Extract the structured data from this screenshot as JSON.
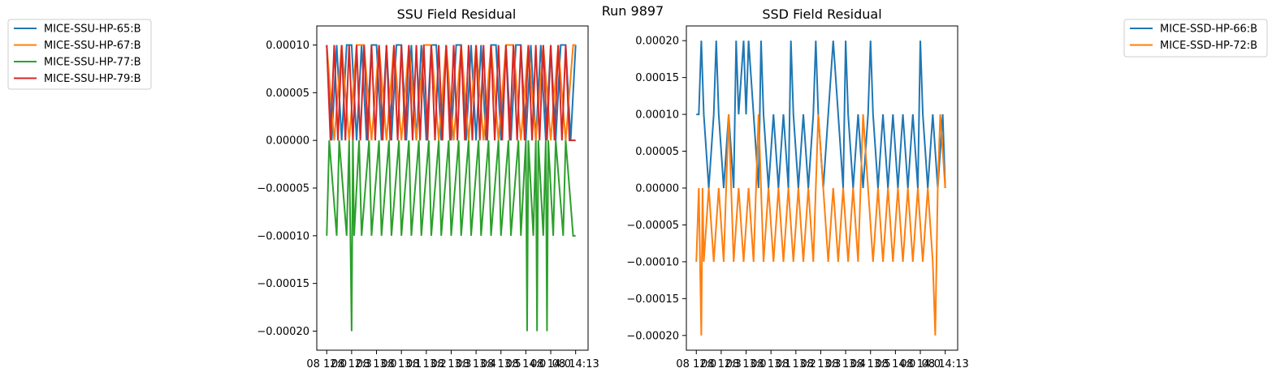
{
  "figure": {
    "suptitle": "Run 9897"
  },
  "chart_data": [
    {
      "type": "line",
      "title": "SSU Field Residual",
      "xlabel": "",
      "ylabel": "",
      "ylim": [
        -0.00022,
        0.00012
      ],
      "yticks": [
        {
          "value": 0.0001,
          "label": "0.00010"
        },
        {
          "value": 5e-05,
          "label": "0.00005"
        },
        {
          "value": 0.0,
          "label": "0.00000"
        },
        {
          "value": -5e-05,
          "label": "−0.00005"
        },
        {
          "value": -0.0001,
          "label": "−0.00010"
        },
        {
          "value": -0.00015,
          "label": "−0.00015"
        },
        {
          "value": -0.0002,
          "label": "−0.00020"
        }
      ],
      "xticks": [
        {
          "value": 0.0,
          "label": "08 12:0"
        },
        {
          "value": 0.1,
          "label": "08 12:3"
        },
        {
          "value": 0.2,
          "label": "08 13:0"
        },
        {
          "value": 0.3,
          "label": "08 13:1"
        },
        {
          "value": 0.4,
          "label": "08 13:2"
        },
        {
          "value": 0.5,
          "label": "08 13:3"
        },
        {
          "value": 0.6,
          "label": "08 13:4"
        },
        {
          "value": 0.7,
          "label": "08 13:5"
        },
        {
          "value": 0.8,
          "label": "08 14:0"
        },
        {
          "value": 0.9,
          "label": "08 14:0"
        },
        {
          "value": 1.0,
          "label": "08 14:13"
        }
      ],
      "xlim": [
        -0.04,
        1.05
      ],
      "grid": false,
      "legend_position": "outside-left",
      "series": [
        {
          "name": "MICE-SSU-HP-65:B",
          "color": "#1f77b4",
          "x": [
            0.0,
            0.02,
            0.04,
            0.06,
            0.08,
            0.1,
            0.12,
            0.14,
            0.16,
            0.18,
            0.2,
            0.22,
            0.24,
            0.26,
            0.28,
            0.3,
            0.32,
            0.34,
            0.36,
            0.38,
            0.4,
            0.42,
            0.44,
            0.46,
            0.48,
            0.5,
            0.52,
            0.54,
            0.56,
            0.58,
            0.6,
            0.62,
            0.64,
            0.66,
            0.68,
            0.7,
            0.72,
            0.74,
            0.76,
            0.78,
            0.8,
            0.82,
            0.84,
            0.86,
            0.88,
            0.9,
            0.92,
            0.94,
            0.96,
            0.98,
            1.0
          ],
          "y": [
            0.0001,
            0.0,
            0.0001,
            0.0,
            0.0001,
            0.0001,
            0.0,
            0.0001,
            0.0,
            0.0001,
            0.0001,
            0.0,
            0.0001,
            0.0,
            0.0001,
            0.0001,
            0.0,
            0.0001,
            0.0,
            0.0001,
            0.0,
            0.0001,
            0.0001,
            0.0,
            0.0001,
            0.0,
            0.0001,
            0.0001,
            0.0,
            0.0001,
            0.0,
            0.0001,
            0.0,
            0.0001,
            0.0001,
            0.0,
            0.0001,
            0.0,
            0.0001,
            0.0001,
            0.0,
            0.0001,
            0.0,
            0.0001,
            0.0,
            0.0001,
            0.0,
            0.0001,
            0.0001,
            0.0,
            0.0001
          ]
        },
        {
          "name": "MICE-SSU-HP-67:B",
          "color": "#ff7f0e",
          "x": [
            0.0,
            0.03,
            0.06,
            0.09,
            0.12,
            0.15,
            0.18,
            0.21,
            0.24,
            0.27,
            0.3,
            0.33,
            0.36,
            0.39,
            0.42,
            0.45,
            0.48,
            0.51,
            0.54,
            0.57,
            0.6,
            0.63,
            0.66,
            0.69,
            0.72,
            0.75,
            0.78,
            0.81,
            0.84,
            0.87,
            0.9,
            0.93,
            0.96,
            0.99,
            1.0
          ],
          "y": [
            0.0001,
            0.0,
            0.0001,
            0.0,
            0.0001,
            0.0001,
            0.0,
            0.0001,
            0.0,
            0.0001,
            0.0,
            0.0001,
            0.0,
            0.0001,
            0.0001,
            0.0,
            0.0001,
            0.0,
            0.0001,
            0.0,
            0.0001,
            0.0,
            0.0001,
            0.0,
            0.0001,
            0.0001,
            0.0,
            0.0001,
            0.0,
            0.0001,
            0.0,
            0.0001,
            0.0,
            0.0001,
            0.0001
          ]
        },
        {
          "name": "MICE-SSU-HP-77:B",
          "color": "#2ca02c",
          "x": [
            0.0,
            0.01,
            0.04,
            0.05,
            0.08,
            0.09,
            0.1,
            0.105,
            0.11,
            0.13,
            0.14,
            0.17,
            0.18,
            0.21,
            0.22,
            0.25,
            0.26,
            0.29,
            0.3,
            0.33,
            0.34,
            0.37,
            0.38,
            0.41,
            0.42,
            0.45,
            0.46,
            0.49,
            0.5,
            0.53,
            0.54,
            0.57,
            0.58,
            0.61,
            0.62,
            0.65,
            0.66,
            0.69,
            0.7,
            0.73,
            0.74,
            0.77,
            0.78,
            0.8,
            0.805,
            0.81,
            0.83,
            0.84,
            0.845,
            0.85,
            0.87,
            0.88,
            0.885,
            0.89,
            0.91,
            0.92,
            0.95,
            0.96,
            0.99,
            1.0
          ],
          "y": [
            -0.0001,
            0.0,
            -0.0001,
            0.0,
            -0.0001,
            0.0,
            -0.0002,
            0.0,
            -0.0001,
            0.0,
            -0.0001,
            0.0,
            -0.0001,
            0.0,
            -0.0001,
            0.0,
            -0.0001,
            0.0,
            -0.0001,
            0.0,
            -0.0001,
            0.0,
            -0.0001,
            0.0,
            -0.0001,
            0.0,
            -0.0001,
            0.0,
            -0.0001,
            0.0,
            -0.0001,
            0.0,
            -0.0001,
            0.0,
            -0.0001,
            0.0,
            -0.0001,
            0.0,
            -0.0001,
            0.0,
            -0.0001,
            0.0,
            -0.0001,
            0.0,
            -0.0002,
            0.0,
            -0.0001,
            0.0,
            -0.0002,
            0.0,
            -0.0001,
            0.0,
            -0.0002,
            0.0,
            -0.0001,
            0.0,
            -0.0001,
            0.0,
            -0.0001,
            -0.0001
          ]
        },
        {
          "name": "MICE-SSU-HP-79:B",
          "color": "#d62728",
          "x": [
            0.0,
            0.015,
            0.03,
            0.045,
            0.06,
            0.075,
            0.09,
            0.105,
            0.12,
            0.135,
            0.15,
            0.165,
            0.18,
            0.195,
            0.21,
            0.225,
            0.24,
            0.255,
            0.27,
            0.285,
            0.3,
            0.315,
            0.33,
            0.345,
            0.36,
            0.375,
            0.39,
            0.405,
            0.42,
            0.435,
            0.45,
            0.465,
            0.48,
            0.495,
            0.51,
            0.525,
            0.54,
            0.555,
            0.57,
            0.585,
            0.6,
            0.615,
            0.63,
            0.645,
            0.66,
            0.675,
            0.69,
            0.705,
            0.72,
            0.735,
            0.75,
            0.765,
            0.78,
            0.795,
            0.81,
            0.825,
            0.84,
            0.855,
            0.87,
            0.885,
            0.9,
            0.915,
            0.93,
            0.945,
            0.96,
            0.975,
            0.99,
            1.0
          ],
          "y": [
            0.0001,
            0.0,
            0.0001,
            0.0,
            0.0001,
            0.0,
            0.0001,
            0.0,
            0.0001,
            0.0,
            0.0001,
            0.0,
            0.0001,
            0.0,
            0.0001,
            0.0,
            0.0001,
            0.0,
            0.0001,
            0.0,
            0.0001,
            0.0,
            0.0001,
            0.0,
            0.0001,
            0.0,
            0.0001,
            0.0,
            0.0001,
            0.0,
            0.0001,
            0.0,
            0.0001,
            0.0,
            0.0001,
            0.0,
            0.0001,
            0.0,
            0.0001,
            0.0,
            0.0001,
            0.0,
            0.0001,
            0.0,
            0.0001,
            0.0,
            0.0001,
            0.0,
            0.0001,
            0.0,
            0.0001,
            0.0,
            0.0001,
            0.0,
            0.0001,
            0.0,
            0.0001,
            0.0,
            0.0001,
            0.0,
            0.0001,
            0.0,
            0.0001,
            0.0,
            0.0001,
            0.0,
            0.0,
            0.0
          ]
        }
      ]
    },
    {
      "type": "line",
      "title": "SSD Field Residual",
      "xlabel": "",
      "ylabel": "",
      "ylim": [
        -0.00022,
        0.00022
      ],
      "yticks": [
        {
          "value": 0.0002,
          "label": "0.00020"
        },
        {
          "value": 0.00015,
          "label": "0.00015"
        },
        {
          "value": 0.0001,
          "label": "0.00010"
        },
        {
          "value": 5e-05,
          "label": "0.00005"
        },
        {
          "value": 0.0,
          "label": "0.00000"
        },
        {
          "value": -5e-05,
          "label": "−0.00005"
        },
        {
          "value": -0.0001,
          "label": "−0.00010"
        },
        {
          "value": -0.00015,
          "label": "−0.00015"
        },
        {
          "value": -0.0002,
          "label": "−0.00020"
        }
      ],
      "xticks": [
        {
          "value": 0.0,
          "label": "08 12:0"
        },
        {
          "value": 0.1,
          "label": "08 12:3"
        },
        {
          "value": 0.2,
          "label": "08 13:0"
        },
        {
          "value": 0.3,
          "label": "08 13:1"
        },
        {
          "value": 0.4,
          "label": "08 13:2"
        },
        {
          "value": 0.5,
          "label": "08 13:3"
        },
        {
          "value": 0.6,
          "label": "08 13:4"
        },
        {
          "value": 0.7,
          "label": "08 13:5"
        },
        {
          "value": 0.8,
          "label": "08 14:0"
        },
        {
          "value": 0.9,
          "label": "08 14:0"
        },
        {
          "value": 1.0,
          "label": "08 14:13"
        }
      ],
      "xlim": [
        -0.04,
        1.05
      ],
      "grid": false,
      "legend_position": "outside-right",
      "series": [
        {
          "name": "MICE-SSD-HP-66:B",
          "color": "#1f77b4",
          "x": [
            0.0,
            0.01,
            0.02,
            0.03,
            0.05,
            0.07,
            0.08,
            0.09,
            0.11,
            0.13,
            0.15,
            0.16,
            0.17,
            0.19,
            0.2,
            0.21,
            0.23,
            0.25,
            0.26,
            0.27,
            0.29,
            0.31,
            0.33,
            0.35,
            0.37,
            0.38,
            0.39,
            0.41,
            0.43,
            0.45,
            0.47,
            0.48,
            0.49,
            0.51,
            0.53,
            0.55,
            0.57,
            0.59,
            0.6,
            0.61,
            0.63,
            0.65,
            0.67,
            0.69,
            0.7,
            0.71,
            0.73,
            0.75,
            0.77,
            0.79,
            0.81,
            0.83,
            0.85,
            0.87,
            0.89,
            0.9,
            0.91,
            0.93,
            0.95,
            0.97,
            0.99,
            1.0
          ],
          "y": [
            0.0001,
            0.0001,
            0.0002,
            0.0001,
            0.0,
            0.0001,
            0.0002,
            0.0001,
            0.0,
            0.0001,
            0.0,
            0.0002,
            0.0001,
            0.0002,
            0.0001,
            0.0002,
            0.0001,
            0.0,
            0.0002,
            0.0001,
            0.0,
            0.0001,
            0.0,
            0.0001,
            0.0,
            0.0002,
            0.0001,
            0.0,
            0.0001,
            0.0,
            0.0001,
            0.0002,
            0.0001,
            0.0,
            0.0001,
            0.0002,
            0.0001,
            0.0,
            0.0002,
            0.0001,
            0.0,
            0.0001,
            0.0,
            0.0001,
            0.0002,
            0.0001,
            0.0,
            0.0001,
            0.0,
            0.0001,
            0.0,
            0.0001,
            0.0,
            0.0001,
            0.0,
            0.0002,
            0.0001,
            0.0,
            0.0001,
            0.0,
            0.0001,
            0.0
          ]
        },
        {
          "name": "MICE-SSD-HP-72:B",
          "color": "#ff7f0e",
          "x": [
            0.0,
            0.01,
            0.02,
            0.025,
            0.03,
            0.05,
            0.07,
            0.09,
            0.11,
            0.13,
            0.15,
            0.17,
            0.19,
            0.21,
            0.23,
            0.25,
            0.27,
            0.29,
            0.31,
            0.33,
            0.35,
            0.37,
            0.39,
            0.41,
            0.43,
            0.45,
            0.47,
            0.49,
            0.51,
            0.53,
            0.55,
            0.57,
            0.59,
            0.61,
            0.63,
            0.65,
            0.67,
            0.69,
            0.71,
            0.73,
            0.75,
            0.77,
            0.79,
            0.81,
            0.83,
            0.85,
            0.87,
            0.89,
            0.91,
            0.93,
            0.95,
            0.96,
            0.97,
            0.98,
            1.0
          ],
          "y": [
            -0.0001,
            0.0,
            -0.0002,
            0.0,
            -0.0001,
            0.0,
            -0.0001,
            0.0,
            -0.0001,
            0.0001,
            -0.0001,
            0.0,
            -0.0001,
            0.0,
            -0.0001,
            0.0001,
            -0.0001,
            0.0,
            -0.0001,
            0.0,
            -0.0001,
            0.0,
            -0.0001,
            0.0,
            -0.0001,
            0.0,
            -0.0001,
            0.0001,
            0.0,
            -0.0001,
            0.0,
            -0.0001,
            0.0,
            -0.0001,
            0.0,
            -0.0001,
            0.0001,
            0.0,
            -0.0001,
            0.0,
            -0.0001,
            0.0,
            -0.0001,
            0.0,
            -0.0001,
            0.0,
            -0.0001,
            0.0,
            -0.0001,
            0.0,
            -0.0001,
            -0.0002,
            0.0,
            0.0001,
            0.0
          ]
        }
      ]
    }
  ]
}
